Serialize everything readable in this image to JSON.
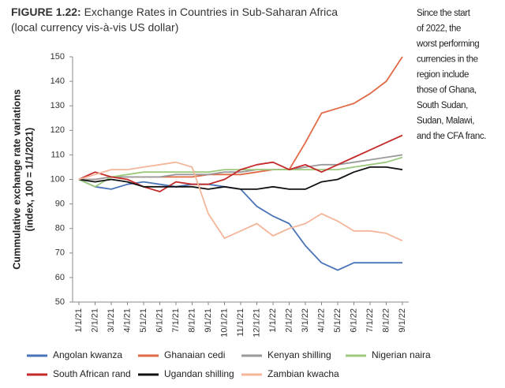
{
  "chart_data": {
    "type": "line",
    "title_label": "FIGURE 1.22:",
    "title": "Exchange Rates in Countries in Sub-Saharan Africa",
    "subtitle": "(local currency vis-à-vis US dollar)",
    "annotation": [
      "Since the start",
      "of 2022, the",
      "worst performing",
      "currencies in the",
      "region include",
      "those of Ghana,",
      "South Sudan,",
      "Sudan, Malawi,",
      "and the CFA franc."
    ],
    "y_label": [
      "Cummulative exchange rate variations",
      "(index, 100 = 1/1/2021)"
    ],
    "categories": [
      "1/1/21",
      "2/1/21",
      "3/1/21",
      "4/1/21",
      "5/1/21",
      "6/1/21",
      "7/1/21",
      "8/1/21",
      "9/1/21",
      "10/1/21",
      "11/1/21",
      "12/1/21",
      "1/1/22",
      "2/1/22",
      "3/1/22",
      "4/1/22",
      "5/1/22",
      "6/1/22",
      "7/1/22",
      "8/1/22",
      "9/1/22"
    ],
    "ylim": [
      50,
      150
    ],
    "yticks": [
      50,
      60,
      70,
      80,
      90,
      100,
      110,
      120,
      130,
      140,
      150
    ],
    "grid": false,
    "series": [
      {
        "name": "Angolan kwanza",
        "color": "#4a74b8",
        "values": [
          100,
          97,
          96,
          98,
          99,
          98,
          97,
          98,
          98,
          97,
          96,
          89,
          85,
          82,
          73,
          66,
          63,
          66,
          66,
          66,
          66
        ]
      },
      {
        "name": "Ghanaian cedi",
        "color": "#e06a45",
        "values": [
          100,
          100,
          101,
          101,
          101,
          101,
          101,
          101,
          102,
          102,
          102,
          103,
          104,
          104,
          115,
          127,
          129,
          131,
          135,
          140,
          150
        ]
      },
      {
        "name": "Kenyan shilling",
        "color": "#9a9a9a",
        "values": [
          100,
          100,
          101,
          101,
          101,
          101,
          102,
          102,
          102,
          103,
          103,
          104,
          104,
          104,
          105,
          106,
          106,
          107,
          108,
          109,
          110
        ]
      },
      {
        "name": "Nigerian naira",
        "color": "#9dc97d",
        "values": [
          100,
          97,
          101,
          102,
          103,
          103,
          103,
          103,
          103,
          104,
          104,
          104,
          104,
          104,
          104,
          104,
          104,
          105,
          106,
          107,
          109
        ]
      },
      {
        "name": "South African rand",
        "color": "#c42a2a",
        "values": [
          100,
          103,
          101,
          100,
          97,
          95,
          99,
          98,
          98,
          100,
          104,
          106,
          107,
          104,
          106,
          103,
          106,
          109,
          112,
          115,
          118
        ]
      },
      {
        "name": "Ugandan shilling",
        "color": "#111111",
        "values": [
          100,
          99,
          100,
          99,
          97,
          97,
          97,
          97,
          96,
          97,
          96,
          96,
          97,
          96,
          96,
          99,
          100,
          103,
          105,
          105,
          104
        ]
      },
      {
        "name": "Zambian kwacha",
        "color": "#f4b69a",
        "values": [
          100,
          102,
          104,
          104,
          105,
          106,
          107,
          105,
          86,
          76,
          79,
          82,
          77,
          80,
          82,
          86,
          83,
          79,
          79,
          78,
          75
        ]
      }
    ]
  }
}
